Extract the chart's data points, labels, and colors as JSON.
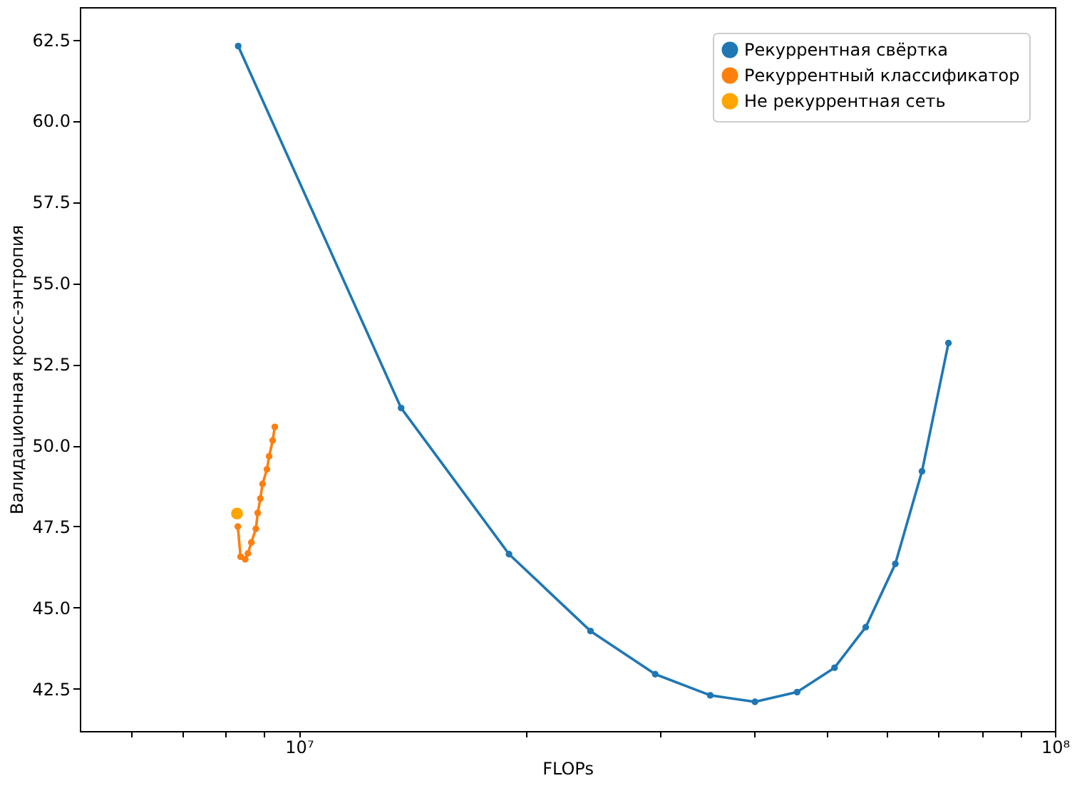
{
  "chart_data": {
    "type": "line",
    "xlabel": "FLOPs",
    "ylabel": "Валидационная кросс-энтропия",
    "log": "x",
    "grid": false,
    "legend": "top right",
    "marker": "circle",
    "line_style": "solid",
    "xlim": [
      5130000,
      100000000
    ],
    "xticks": [
      {
        "value": 6000000,
        "label": null
      },
      {
        "value": 7000000,
        "label": null
      },
      {
        "value": 8000000,
        "label": null
      },
      {
        "value": 9000000,
        "label": null
      },
      {
        "value": 10000000,
        "label": "10⁷"
      },
      {
        "value": 20000000,
        "label": null
      },
      {
        "value": 30000000,
        "label": null
      },
      {
        "value": 40000000,
        "label": null
      },
      {
        "value": 50000000,
        "label": null
      },
      {
        "value": 60000000,
        "label": null
      },
      {
        "value": 70000000,
        "label": null
      },
      {
        "value": 80000000,
        "label": null
      },
      {
        "value": 90000000,
        "label": null
      },
      {
        "value": 100000000,
        "label": "10⁸"
      }
    ],
    "ylim": [
      41.2,
      63.5
    ],
    "yticks": [
      42.5,
      {
        "value": 45,
        "label": "45.0"
      },
      47.5,
      {
        "value": 50,
        "label": "50.0"
      },
      52.5,
      {
        "value": 55,
        "label": "55.0"
      },
      57.5,
      {
        "value": 60,
        "label": "60.0"
      },
      62.5
    ],
    "series": [
      {
        "name": "Рекуррентная свёртка",
        "color": "#1f77b4",
        "x": [
          8310000,
          13650000,
          18960000,
          24300000,
          29600000,
          35000000,
          40100000,
          45600000,
          51100000,
          56200000,
          61500000,
          66700000,
          72300000
        ],
        "values": [
          62.3,
          51.15,
          46.65,
          44.28,
          42.95,
          42.3,
          42.1,
          42.4,
          43.15,
          44.4,
          46.35,
          49.2,
          53.15
        ]
      },
      {
        "name": "Рекуррентный классификатор",
        "color": "#ff7f0e",
        "x": [
          8300000,
          8370000,
          8490000,
          8560000,
          8650000,
          8770000,
          8820000,
          8890000,
          8950000,
          9070000,
          9130000,
          9230000,
          9290000
        ],
        "values": [
          47.5,
          46.57,
          46.49,
          46.67,
          47.01,
          47.43,
          47.92,
          48.36,
          48.81,
          49.26,
          49.66,
          50.15,
          50.57
        ]
      },
      {
        "name": "Не рекуррентная сеть",
        "type": "scatter",
        "color": "#ffa500",
        "x": [
          8280000
        ],
        "values": [
          47.9
        ]
      }
    ]
  }
}
